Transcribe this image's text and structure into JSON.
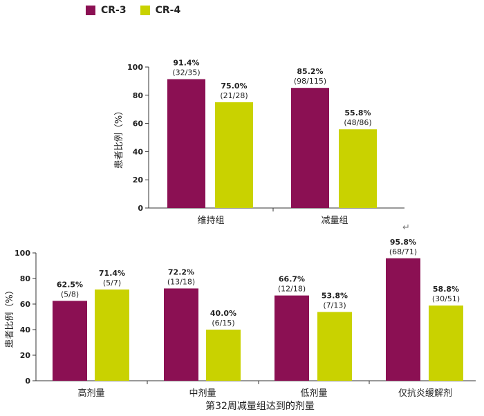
{
  "colors": {
    "cr3": "#8b1053",
    "cr4": "#c9d200"
  },
  "legend": [
    {
      "label": "CR-3",
      "color": "#8b1053"
    },
    {
      "label": "CR-4",
      "color": "#c9d200"
    }
  ],
  "return_symbol": "↵",
  "chart_data": [
    {
      "type": "bar",
      "title": "",
      "xlabel": "",
      "ylabel": "患者比例（%）",
      "ylim": [
        0,
        100
      ],
      "yticks": [
        "0",
        "20",
        "40",
        "60",
        "80",
        "100"
      ],
      "categories": [
        "维持组",
        "减量组"
      ],
      "series": [
        {
          "name": "CR-3",
          "values": [
            91.4,
            85.2
          ],
          "labels": [
            "91.4%",
            "85.2%"
          ],
          "counts": [
            "(32/35)",
            "(98/115)"
          ]
        },
        {
          "name": "CR-4",
          "values": [
            75.0,
            55.8
          ],
          "labels": [
            "75.0%",
            "55.8%"
          ],
          "counts": [
            "(21/28)",
            "(48/86)"
          ]
        }
      ]
    },
    {
      "type": "bar",
      "title": "",
      "xlabel": "第32周减量组达到的剂量",
      "ylabel": "患者比例（%）",
      "ylim": [
        0,
        100
      ],
      "yticks": [
        "0",
        "20",
        "40",
        "60",
        "80",
        "100"
      ],
      "categories": [
        "高剂量",
        "中剂量",
        "低剂量",
        "仅抗炎缓解剂"
      ],
      "series": [
        {
          "name": "CR-3",
          "values": [
            62.5,
            72.2,
            66.7,
            95.8
          ],
          "labels": [
            "62.5%",
            "72.2%",
            "66.7%",
            "95.8%"
          ],
          "counts": [
            "(5/8)",
            "(13/18)",
            "(12/18)",
            "(68/71)"
          ]
        },
        {
          "name": "CR-4",
          "values": [
            71.4,
            40.0,
            53.8,
            58.8
          ],
          "labels": [
            "71.4%",
            "40.0%",
            "53.8%",
            "58.8%"
          ],
          "counts": [
            "(5/7)",
            "(6/15)",
            "(7/13)",
            "(30/51)"
          ]
        }
      ]
    }
  ]
}
